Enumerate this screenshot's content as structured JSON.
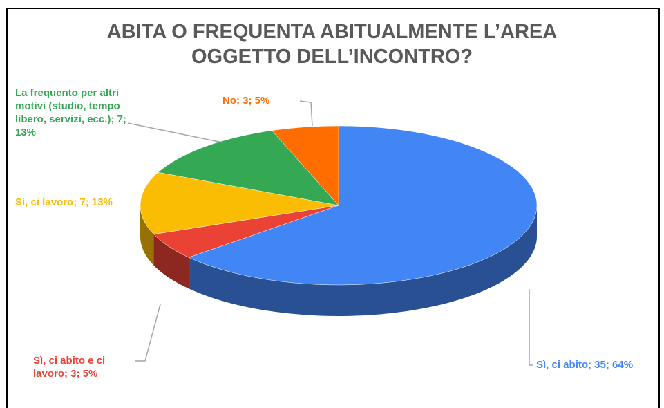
{
  "chart_data": {
    "type": "pie3d",
    "title": [
      "ABITA O FREQUENTA ABITUALMENTE L’AREA",
      "OGGETTO DELL’INCONTRO?"
    ],
    "values": [
      35,
      3,
      7,
      7,
      3
    ],
    "value_labels": [
      "Sì, ci abito; 35; 64%",
      "Sì, ci abito e ci lavoro; 3; 5%",
      "Sì, ci lavoro; 7; 13%",
      "La frequento per altri motivi (studio, tempo libero, servizi, ecc.); 7; 13%",
      "No; 3; 5%"
    ],
    "colors": [
      "#4285f4",
      "#ea4335",
      "#fbbc04",
      "#34a853",
      "#ff6d01"
    ]
  }
}
